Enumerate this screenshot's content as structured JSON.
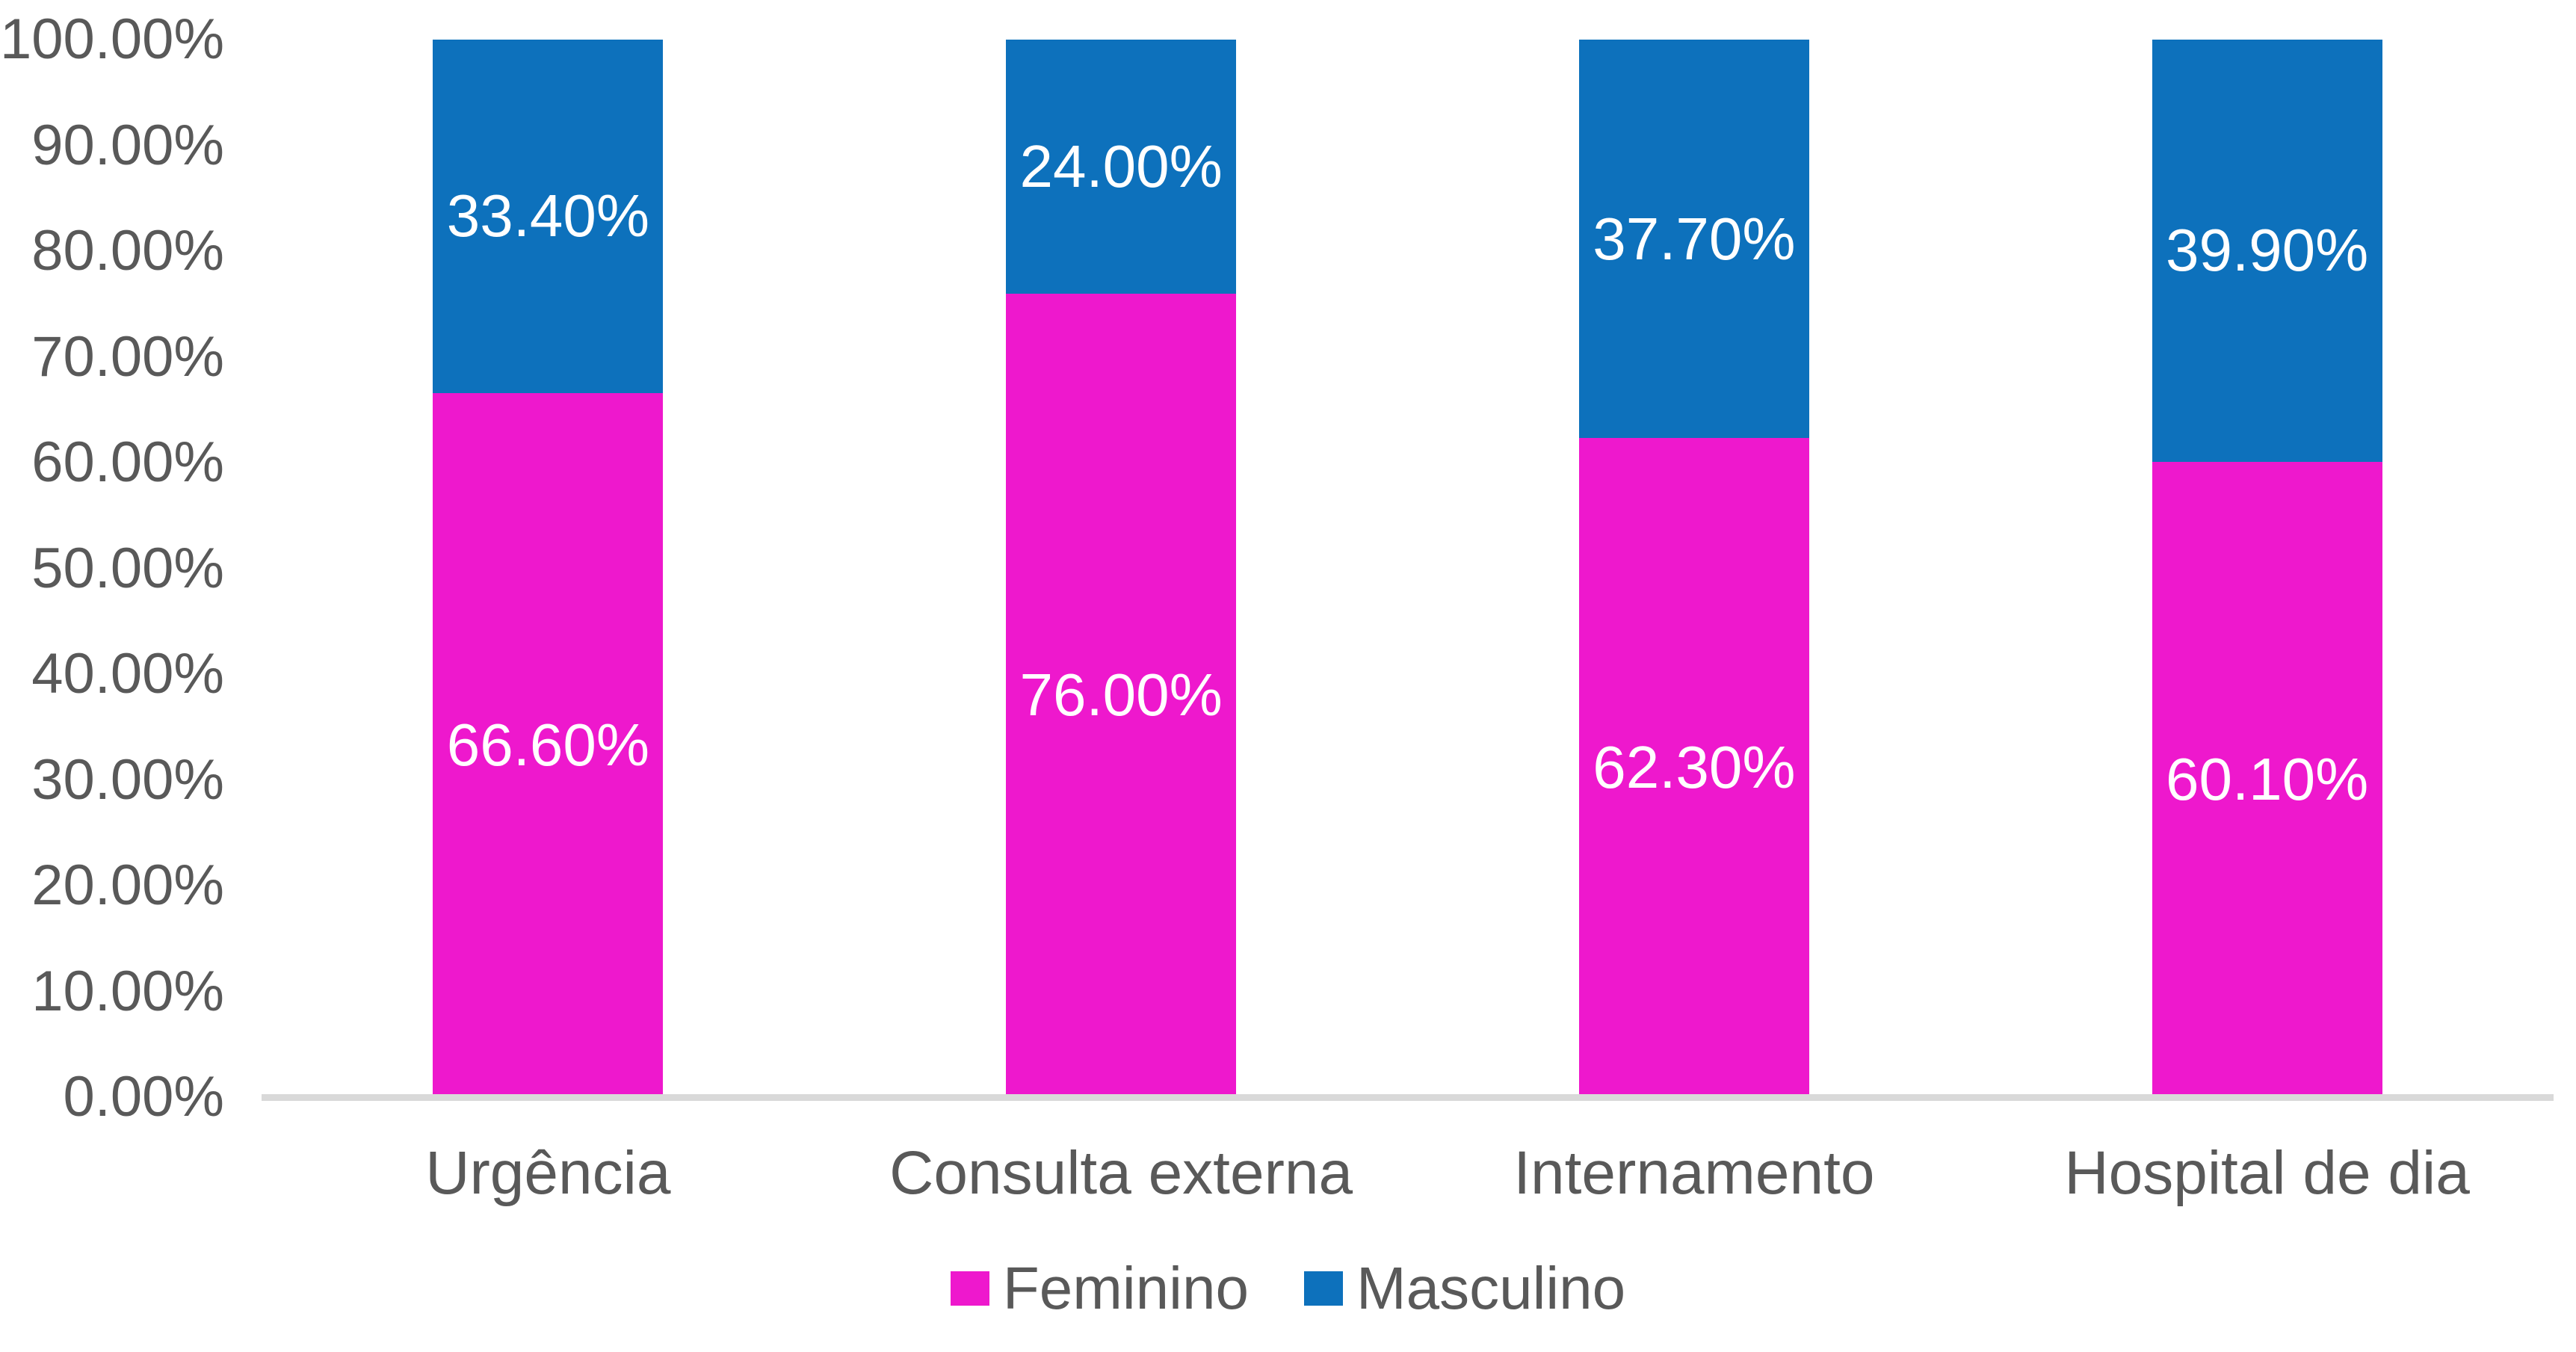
{
  "chart_data": {
    "type": "bar",
    "stacked": true,
    "orientation": "vertical",
    "title": "",
    "xlabel": "",
    "ylabel": "",
    "grid": false,
    "categories": [
      "Urgência",
      "Consulta externa",
      "Internamento",
      "Hospital de dia"
    ],
    "series": [
      {
        "name": "Feminino",
        "color": "#EE18CD",
        "values": [
          66.6,
          76.0,
          62.3,
          60.1
        ],
        "labels": [
          "66.60%",
          "76.00%",
          "62.30%",
          "60.10%"
        ]
      },
      {
        "name": "Masculino",
        "color": "#0D71BC",
        "values": [
          33.4,
          24.0,
          37.7,
          39.9
        ],
        "labels": [
          "33.40%",
          "24.00%",
          "37.70%",
          "39.90%"
        ]
      }
    ],
    "y_axis": {
      "min": 0,
      "max": 100,
      "step": 10,
      "tick_labels": [
        "0.00%",
        "10.00%",
        "20.00%",
        "30.00%",
        "40.00%",
        "50.00%",
        "60.00%",
        "70.00%",
        "80.00%",
        "90.00%",
        "100.00%"
      ]
    },
    "legend": {
      "position": "bottom",
      "marker": "square"
    }
  },
  "style": {
    "background": "#FFFFFF",
    "axis_text_color": "#595959",
    "axis_line_color": "#D9D9D9",
    "data_label_color": "#FFFFFF"
  }
}
